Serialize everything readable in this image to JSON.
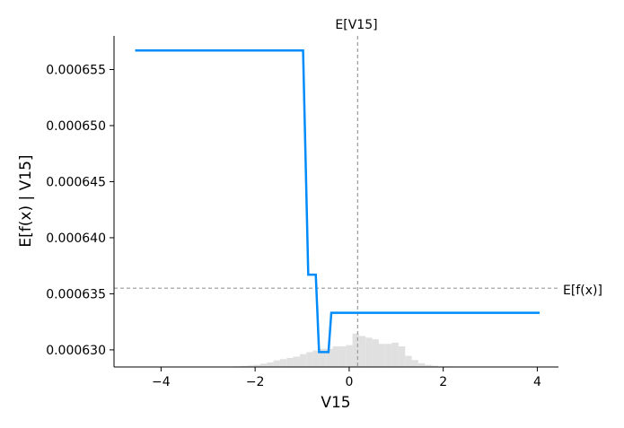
{
  "chart_data": {
    "type": "line",
    "xlabel": "V15",
    "ylabel": "E[f(x) | V15]",
    "xlim": [
      -5,
      4.45
    ],
    "ylim": [
      0.000628472,
      0.000658
    ],
    "x_ticks": [
      -4,
      -2,
      0,
      2,
      4
    ],
    "x_tick_labels": [
      "−4",
      "−2",
      "0",
      "2",
      "4"
    ],
    "y_ticks": [
      0.00063,
      0.000635,
      0.00064,
      0.000645,
      0.00065,
      0.000655
    ],
    "y_tick_labels": [
      "0.000630",
      "0.000635",
      "0.000640",
      "0.000645",
      "0.000650",
      "0.000655"
    ],
    "series": [
      {
        "color": "#008bfb",
        "points": [
          [
            -4.55,
            0.0006567
          ],
          [
            -0.98,
            0.0006567
          ],
          [
            -0.87,
            0.0006367
          ],
          [
            -0.71,
            0.0006367
          ],
          [
            -0.64,
            0.0006298
          ],
          [
            -0.44,
            0.0006298
          ],
          [
            -0.38,
            0.0006333
          ],
          [
            4.05,
            0.0006333
          ]
        ]
      }
    ],
    "ref_lines": {
      "vertical": {
        "label": "E[V15]",
        "x": 0.18
      },
      "horizontal": {
        "label": "E[f(x)]",
        "y": 0.0006355
      }
    },
    "histogram": {
      "color": "#e0e0e0",
      "bin_width": 0.14,
      "centers": [
        -3.1,
        -2.8,
        -2.52,
        -2.38,
        -2.24,
        -2.1,
        -1.96,
        -1.82,
        -1.68,
        -1.54,
        -1.4,
        -1.26,
        -1.12,
        -0.98,
        -0.84,
        -0.7,
        -0.56,
        -0.42,
        -0.28,
        -0.14,
        0.0,
        0.14,
        0.28,
        0.42,
        0.56,
        0.7,
        0.84,
        0.98,
        1.12,
        1.26,
        1.4,
        1.54,
        1.68,
        1.82,
        2.1,
        2.38,
        2.8
      ],
      "fractions": [
        0.005,
        0.005,
        0.02,
        0.03,
        0.05,
        0.07,
        0.1,
        0.16,
        0.22,
        0.32,
        0.38,
        0.44,
        0.5,
        0.62,
        0.72,
        0.8,
        0.88,
        0.88,
        1.0,
        1.0,
        1.06,
        1.62,
        1.5,
        1.42,
        1.34,
        1.12,
        1.12,
        1.18,
        1.0,
        0.54,
        0.34,
        0.18,
        0.1,
        0.06,
        0.03,
        0.02,
        0.01
      ]
    }
  }
}
